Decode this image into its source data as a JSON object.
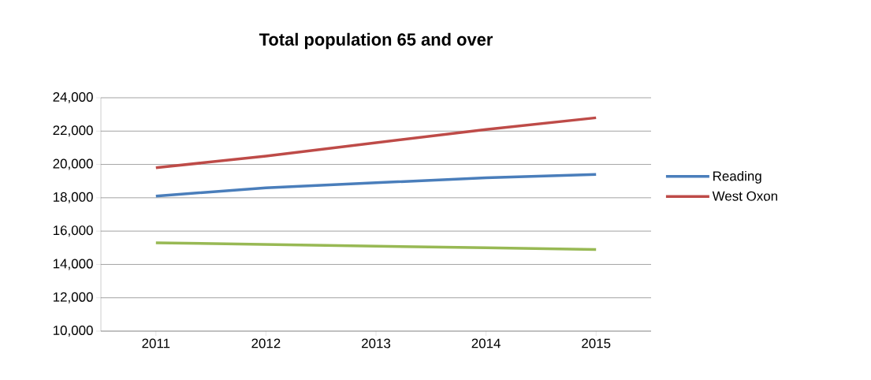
{
  "chart_data": {
    "type": "line",
    "title": "Total population 65 and over",
    "categories": [
      "2011",
      "2012",
      "2013",
      "2014",
      "2015"
    ],
    "series": [
      {
        "name": "Reading",
        "color": "#4a7ebb",
        "values": [
          18100,
          18600,
          18900,
          19200,
          19400
        ]
      },
      {
        "name": "West Oxon",
        "color": "#be4b48",
        "values": [
          19800,
          20500,
          21300,
          22100,
          22800
        ]
      },
      {
        "color": "#98b954",
        "values": [
          15300,
          15200,
          15100,
          15000,
          14900
        ]
      }
    ],
    "ylim": [
      10000,
      24000
    ],
    "yticks": [
      {
        "value": 10000,
        "label": "10,000"
      },
      {
        "value": 12000,
        "label": "12,000"
      },
      {
        "value": 14000,
        "label": "14,000"
      },
      {
        "value": 16000,
        "label": "16,000"
      },
      {
        "value": 18000,
        "label": "18,000"
      },
      {
        "value": 20000,
        "label": "20,000"
      },
      {
        "value": 22000,
        "label": "22,000"
      },
      {
        "value": 24000,
        "label": "24,000"
      }
    ],
    "grid": "y",
    "legend": "right",
    "marker": "none",
    "line_style": "solid"
  }
}
